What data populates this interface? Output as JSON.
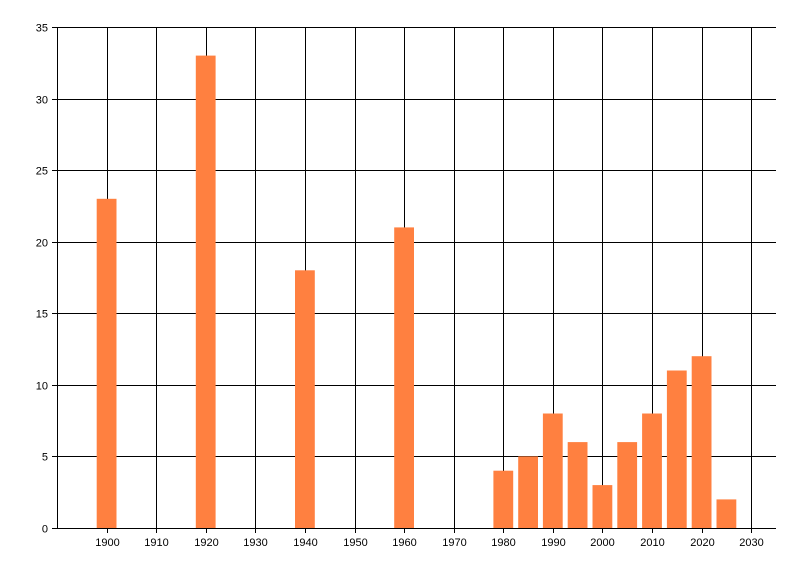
{
  "chart_data": {
    "type": "bar",
    "x": [
      1900,
      1920,
      1940,
      1960,
      1980,
      1985,
      1990,
      1995,
      2000,
      2005,
      2010,
      2015,
      2020,
      2025
    ],
    "values": [
      23,
      33,
      18,
      21,
      4,
      5,
      8,
      6,
      3,
      6,
      8,
      11,
      12,
      2
    ],
    "xlim": [
      1890,
      2035
    ],
    "ylim": [
      0,
      35
    ],
    "x_ticks": [
      1900,
      1910,
      1920,
      1930,
      1940,
      1950,
      1960,
      1970,
      1980,
      1990,
      2000,
      2010,
      2020,
      2030
    ],
    "y_ticks": [
      0,
      5,
      10,
      15,
      20,
      25,
      30,
      35
    ],
    "bar_width": 4,
    "grid": true,
    "legend": false,
    "colors": {
      "bar": "#ff8040",
      "grid": "#000000",
      "axis": "#000000"
    }
  }
}
